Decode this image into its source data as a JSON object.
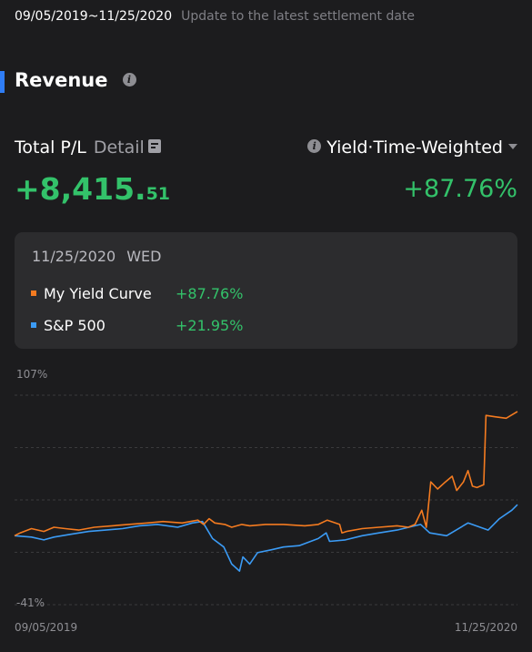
{
  "header": {
    "date_range": "09/05/2019~11/25/2020",
    "note": "Update to the latest settlement date"
  },
  "section": {
    "title": "Revenue",
    "info_icon": "info-icon"
  },
  "summary": {
    "pl_label": "Total P/L",
    "detail_label": "Detail",
    "detail_icon": "document-icon",
    "pl_value_main": "+8,415.",
    "pl_value_decimals": "51",
    "yield_type": "Yield·Time-Weighted",
    "yield_value": "+87.76%"
  },
  "tooltip": {
    "date": "11/25/2020",
    "day": "WED",
    "rows": [
      {
        "name": "My Yield Curve",
        "value": "+87.76%",
        "color": "#f47b20"
      },
      {
        "name": "S&P 500",
        "value": "+21.95%",
        "color": "#3b9bf5"
      }
    ]
  },
  "colors": {
    "background": "#1c1c1e",
    "card": "#2c2c2e",
    "positive": "#33c26a",
    "accent": "#2f7df6",
    "series_1": "#f47b20",
    "series_2": "#3b9bf5"
  },
  "chart_data": {
    "type": "line",
    "y_max_label": "107%",
    "y_min_label": "-41%",
    "x_start_label": "09/05/2019",
    "x_end_label": "11/25/2020",
    "ylim": [
      -41,
      107
    ],
    "grid": true,
    "series": [
      {
        "name": "My Yield Curve",
        "color": "#f47b20",
        "points": [
          [
            "2019-09-05",
            0
          ],
          [
            "2019-09-10",
            2
          ],
          [
            "2019-09-20",
            5
          ],
          [
            "2019-10-01",
            3
          ],
          [
            "2019-10-10",
            6
          ],
          [
            "2019-10-20",
            5
          ],
          [
            "2019-11-01",
            4
          ],
          [
            "2019-11-15",
            6
          ],
          [
            "2019-12-01",
            7
          ],
          [
            "2019-12-15",
            8
          ],
          [
            "2020-01-01",
            9
          ],
          [
            "2020-01-15",
            10
          ],
          [
            "2020-02-01",
            9
          ],
          [
            "2020-02-15",
            11
          ],
          [
            "2020-02-20",
            8
          ],
          [
            "2020-02-25",
            12
          ],
          [
            "2020-03-01",
            9
          ],
          [
            "2020-03-10",
            8
          ],
          [
            "2020-03-16",
            6
          ],
          [
            "2020-03-25",
            8
          ],
          [
            "2020-04-01",
            7
          ],
          [
            "2020-04-15",
            8
          ],
          [
            "2020-05-01",
            8
          ],
          [
            "2020-05-20",
            7
          ],
          [
            "2020-06-01",
            8
          ],
          [
            "2020-06-09",
            11
          ],
          [
            "2020-06-20",
            8
          ],
          [
            "2020-06-22",
            2
          ],
          [
            "2020-06-26",
            3
          ],
          [
            "2020-07-10",
            5
          ],
          [
            "2020-07-25",
            6
          ],
          [
            "2020-08-10",
            7
          ],
          [
            "2020-08-20",
            6
          ],
          [
            "2020-08-26",
            8
          ],
          [
            "2020-09-01",
            18
          ],
          [
            "2020-09-05",
            6
          ],
          [
            "2020-09-09",
            38
          ],
          [
            "2020-09-15",
            33
          ],
          [
            "2020-09-22",
            38
          ],
          [
            "2020-09-28",
            42
          ],
          [
            "2020-10-02",
            32
          ],
          [
            "2020-10-08",
            38
          ],
          [
            "2020-10-12",
            46
          ],
          [
            "2020-10-16",
            35
          ],
          [
            "2020-10-20",
            34
          ],
          [
            "2020-10-26",
            36
          ],
          [
            "2020-10-28",
            85
          ],
          [
            "2020-11-05",
            84
          ],
          [
            "2020-11-15",
            83
          ],
          [
            "2020-11-25",
            87.76
          ]
        ]
      },
      {
        "name": "S&P 500",
        "color": "#3b9bf5",
        "points": [
          [
            "2019-09-05",
            0
          ],
          [
            "2019-09-20",
            -1
          ],
          [
            "2019-10-01",
            -3
          ],
          [
            "2019-10-10",
            -1
          ],
          [
            "2019-10-25",
            1
          ],
          [
            "2019-11-10",
            3
          ],
          [
            "2019-11-25",
            4
          ],
          [
            "2019-12-10",
            5
          ],
          [
            "2019-12-25",
            7
          ],
          [
            "2020-01-10",
            8
          ],
          [
            "2020-01-28",
            6
          ],
          [
            "2020-02-10",
            9
          ],
          [
            "2020-02-19",
            10
          ],
          [
            "2020-02-28",
            -2
          ],
          [
            "2020-03-09",
            -8
          ],
          [
            "2020-03-16",
            -20
          ],
          [
            "2020-03-23",
            -25
          ],
          [
            "2020-03-26",
            -15
          ],
          [
            "2020-04-01",
            -20
          ],
          [
            "2020-04-08",
            -12
          ],
          [
            "2020-04-20",
            -10
          ],
          [
            "2020-05-01",
            -8
          ],
          [
            "2020-05-15",
            -7
          ],
          [
            "2020-06-01",
            -2
          ],
          [
            "2020-06-08",
            2
          ],
          [
            "2020-06-11",
            -4
          ],
          [
            "2020-06-25",
            -3
          ],
          [
            "2020-07-10",
            0
          ],
          [
            "2020-07-25",
            2
          ],
          [
            "2020-08-10",
            4
          ],
          [
            "2020-08-31",
            8
          ],
          [
            "2020-09-08",
            2
          ],
          [
            "2020-09-23",
            0
          ],
          [
            "2020-10-12",
            9
          ],
          [
            "2020-10-30",
            4
          ],
          [
            "2020-11-09",
            12
          ],
          [
            "2020-11-20",
            18
          ],
          [
            "2020-11-25",
            21.95
          ]
        ]
      }
    ]
  }
}
